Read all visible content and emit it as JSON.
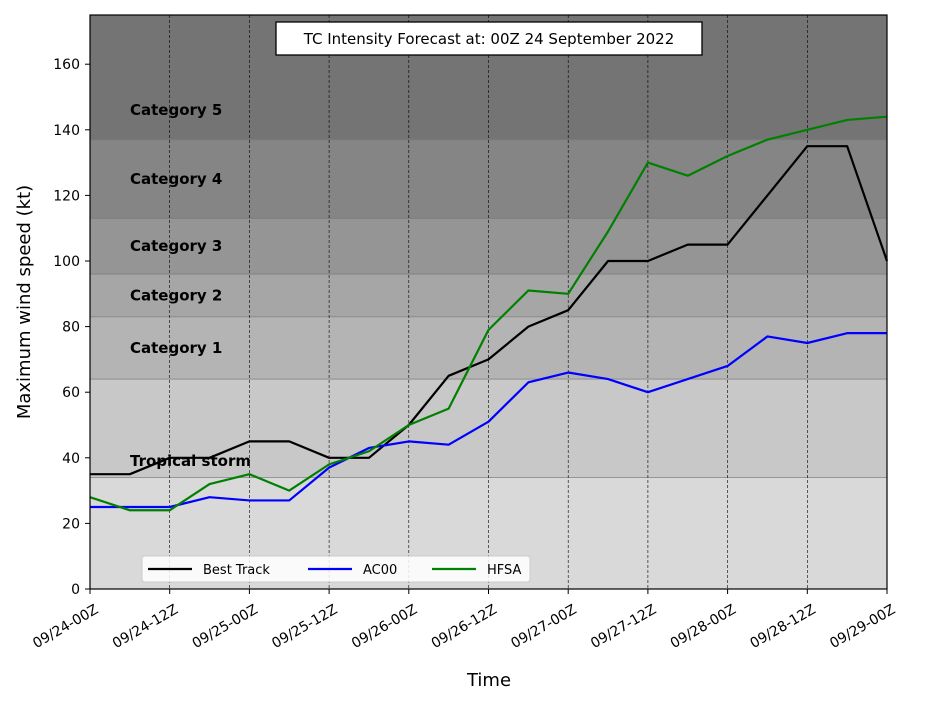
{
  "chart_data": {
    "type": "line",
    "title": "TC Intensity Forecast at: 00Z 24 September 2022",
    "xlabel": "Time",
    "ylabel": "Maximum wind speed (kt)",
    "ylim": [
      0,
      175
    ],
    "yticks": [
      0,
      20,
      40,
      60,
      80,
      100,
      120,
      140,
      160
    ],
    "xlim": [
      0,
      120
    ],
    "xticks": [
      0,
      12,
      24,
      36,
      48,
      60,
      72,
      84,
      96,
      108,
      120
    ],
    "xtick_labels": [
      "09/24-00Z",
      "09/24-12Z",
      "09/25-00Z",
      "09/25-12Z",
      "09/26-00Z",
      "09/26-12Z",
      "09/27-00Z",
      "09/27-12Z",
      "09/28-00Z",
      "09/28-12Z",
      "09/29-00Z"
    ],
    "x_units": "hours after 09/24-00Z",
    "grid": "vertical dashed at x ticks",
    "legend_placement": "lower-left",
    "bands": [
      {
        "label": "Tropical storm",
        "from": 34,
        "to": 64,
        "color": "#c8c8c8"
      },
      {
        "label": "Category 1",
        "from": 64,
        "to": 83,
        "color": "#b4b4b4"
      },
      {
        "label": "Category 2",
        "from": 83,
        "to": 96,
        "color": "#a6a6a6"
      },
      {
        "label": "Category 3",
        "from": 96,
        "to": 113,
        "color": "#959595"
      },
      {
        "label": "Category 4",
        "from": 113,
        "to": 137,
        "color": "#858585"
      },
      {
        "label": "Category 5",
        "from": 137,
        "to": 175,
        "color": "#747474"
      }
    ],
    "below_band_color": "#d9d9d9",
    "x": [
      0,
      6,
      12,
      18,
      24,
      30,
      36,
      42,
      48,
      54,
      60,
      66,
      72,
      78,
      84,
      90,
      96,
      102,
      108,
      114,
      120
    ],
    "series": [
      {
        "name": "Best Track",
        "color": "#000000",
        "values": [
          35,
          35,
          40,
          40,
          45,
          45,
          40,
          40,
          50,
          65,
          70,
          80,
          85,
          100,
          100,
          105,
          105,
          120,
          135,
          135,
          100
        ]
      },
      {
        "name": "AC00",
        "color": "#0000ff",
        "values": [
          25,
          25,
          25,
          28,
          27,
          27,
          37,
          43,
          45,
          44,
          51,
          63,
          66,
          64,
          60,
          64,
          68,
          77,
          75,
          78,
          78
        ]
      },
      {
        "name": "HFSA",
        "color": "#008000",
        "values": [
          28,
          24,
          24,
          32,
          35,
          30,
          38,
          42,
          50,
          55,
          79,
          91,
          90,
          109,
          130,
          126,
          132,
          137,
          140,
          143,
          144
        ]
      }
    ]
  }
}
